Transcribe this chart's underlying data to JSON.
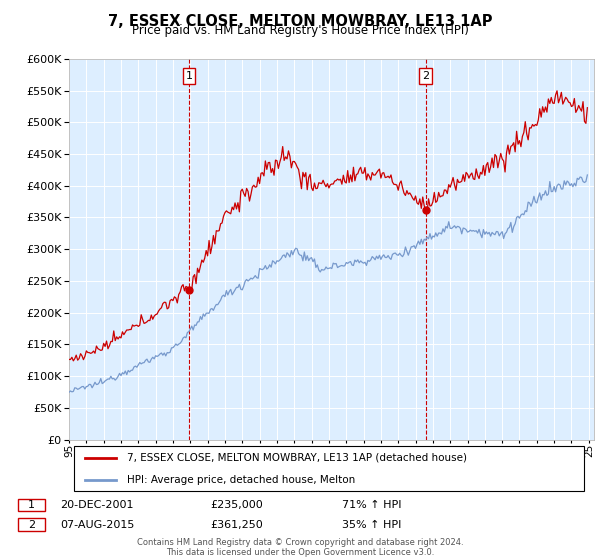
{
  "title": "7, ESSEX CLOSE, MELTON MOWBRAY, LE13 1AP",
  "subtitle": "Price paid vs. HM Land Registry's House Price Index (HPI)",
  "legend_line1": "7, ESSEX CLOSE, MELTON MOWBRAY, LE13 1AP (detached house)",
  "legend_line2": "HPI: Average price, detached house, Melton",
  "sale1_date": "20-DEC-2001",
  "sale1_price": 235000,
  "sale1_label": "71% ↑ HPI",
  "sale2_date": "07-AUG-2015",
  "sale2_price": 361250,
  "sale2_label": "35% ↑ HPI",
  "footer": "Contains HM Land Registry data © Crown copyright and database right 2024.\nThis data is licensed under the Open Government Licence v3.0.",
  "red_color": "#cc0000",
  "blue_color": "#7799cc",
  "bg_color": "#ddeeff",
  "ylim": [
    0,
    600000
  ],
  "yticks": [
    0,
    50000,
    100000,
    150000,
    200000,
    250000,
    300000,
    350000,
    400000,
    450000,
    500000,
    550000,
    600000
  ]
}
